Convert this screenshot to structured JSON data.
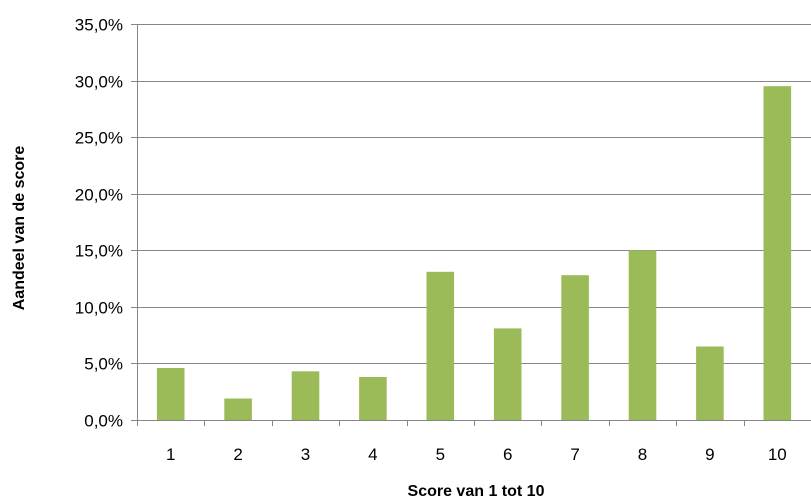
{
  "chart_data": {
    "type": "bar",
    "categories": [
      "1",
      "2",
      "3",
      "4",
      "5",
      "6",
      "7",
      "8",
      "9",
      "10"
    ],
    "values": [
      4.6,
      1.9,
      4.3,
      3.8,
      13.1,
      8.1,
      12.8,
      15.0,
      6.5,
      29.5
    ],
    "title": "",
    "xlabel": "Score van 1 tot 10",
    "ylabel": "Aandeel van de score",
    "ylim": [
      0,
      35
    ],
    "yticks": [
      0,
      5,
      10,
      15,
      20,
      25,
      30,
      35
    ],
    "ytick_labels": [
      "0,0%",
      "5,0%",
      "10,0%",
      "15,0%",
      "20,0%",
      "25,0%",
      "30,0%",
      "35,0%"
    ],
    "grid": true,
    "legend": "none",
    "colors": {
      "bar": "#9bbb59",
      "grid": "#868686",
      "axis": "#868686"
    }
  }
}
